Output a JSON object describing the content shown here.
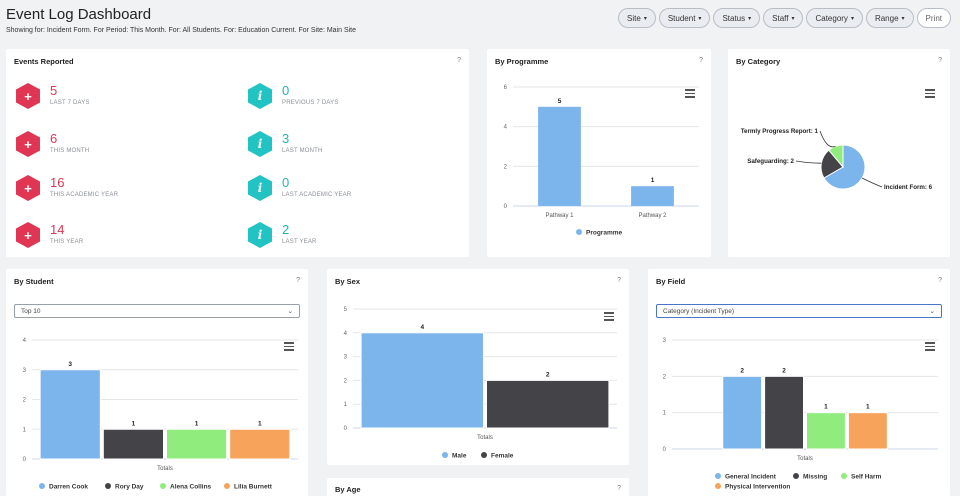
{
  "header": {
    "title": "Event Log Dashboard",
    "subtitle": "Showing for: Incident Form. For Period: This Month. For: All Students. For: Education Current. For Site: Main Site"
  },
  "filters": [
    {
      "label": "Site"
    },
    {
      "label": "Student"
    },
    {
      "label": "Status"
    },
    {
      "label": "Staff"
    },
    {
      "label": "Category"
    },
    {
      "label": "Range"
    }
  ],
  "print_label": "Print",
  "help_label": "?",
  "events": {
    "title": "Events Reported",
    "items": [
      {
        "value": "5",
        "label": "LAST 7 DAYS",
        "kind": "red"
      },
      {
        "value": "0",
        "label": "PREVIOUS 7 DAYS",
        "kind": "teal"
      },
      {
        "value": "6",
        "label": "THIS MONTH",
        "kind": "red"
      },
      {
        "value": "3",
        "label": "LAST MONTH",
        "kind": "teal"
      },
      {
        "value": "16",
        "label": "THIS ACADEMIC YEAR",
        "kind": "red"
      },
      {
        "value": "0",
        "label": "LAST ACADEMIC YEAR",
        "kind": "teal"
      },
      {
        "value": "14",
        "label": "THIS YEAR",
        "kind": "red"
      },
      {
        "value": "2",
        "label": "LAST YEAR",
        "kind": "teal"
      }
    ],
    "red_glyph": "+",
    "teal_glyph": "i"
  },
  "panels": {
    "programme": "By Programme",
    "category": "By Category",
    "student": "By Student",
    "sex": "By Sex",
    "field": "By Field",
    "age": "By Age"
  },
  "student_select": "Top 10",
  "field_select": "Category (Incident Type)",
  "colors": {
    "blue": "#7cb5ec",
    "dark": "#434348",
    "green": "#90ed7d",
    "orange": "#f7a35c",
    "red": "#e03654",
    "teal": "#22c3c3"
  },
  "chart_data": [
    {
      "id": "programme",
      "type": "bar",
      "categories": [
        "Pathway 1",
        "Pathway 2"
      ],
      "series": [
        {
          "name": "Programme",
          "values": [
            5,
            1
          ]
        }
      ],
      "ylim": [
        0,
        6
      ],
      "yticks": [
        0,
        2,
        4,
        6
      ],
      "legend": "bottom"
    },
    {
      "id": "category",
      "type": "pie",
      "slices": [
        {
          "label": "Incident Form: 6",
          "value": 6,
          "color": "#7cb5ec"
        },
        {
          "label": "Safeguarding: 2",
          "value": 2,
          "color": "#434348"
        },
        {
          "label": "Termly Progress Report: 1",
          "value": 1,
          "color": "#90ed7d"
        }
      ]
    },
    {
      "id": "student",
      "type": "bar",
      "categories": [
        "Totals"
      ],
      "series": [
        {
          "name": "Darren Cook",
          "values": [
            3
          ],
          "color": "#7cb5ec"
        },
        {
          "name": "Rory Day",
          "values": [
            1
          ],
          "color": "#434348"
        },
        {
          "name": "Alena Collins",
          "values": [
            1
          ],
          "color": "#90ed7d"
        },
        {
          "name": "Lilia Burnett",
          "values": [
            1
          ],
          "color": "#f7a35c"
        }
      ],
      "ylim": [
        0,
        4
      ],
      "yticks": [
        0,
        1,
        2,
        3,
        4
      ],
      "legend": "bottom"
    },
    {
      "id": "sex",
      "type": "bar",
      "categories": [
        "Totals"
      ],
      "series": [
        {
          "name": "Male",
          "values": [
            4
          ],
          "color": "#7cb5ec"
        },
        {
          "name": "Female",
          "values": [
            2
          ],
          "color": "#434348"
        }
      ],
      "ylim": [
        0,
        5
      ],
      "yticks": [
        0,
        1,
        2,
        3,
        4,
        5
      ],
      "legend": "bottom"
    },
    {
      "id": "field",
      "type": "bar",
      "categories": [
        "Totals"
      ],
      "series": [
        {
          "name": "General Incident",
          "values": [
            2
          ],
          "color": "#7cb5ec"
        },
        {
          "name": "Missing",
          "values": [
            2
          ],
          "color": "#434348"
        },
        {
          "name": "Self Harm",
          "values": [
            1
          ],
          "color": "#90ed7d"
        },
        {
          "name": "Physical Intervention",
          "values": [
            1
          ],
          "color": "#f7a35c"
        }
      ],
      "ylim": [
        0,
        3
      ],
      "yticks": [
        0,
        1,
        2,
        3
      ],
      "legend": "bottom"
    }
  ]
}
